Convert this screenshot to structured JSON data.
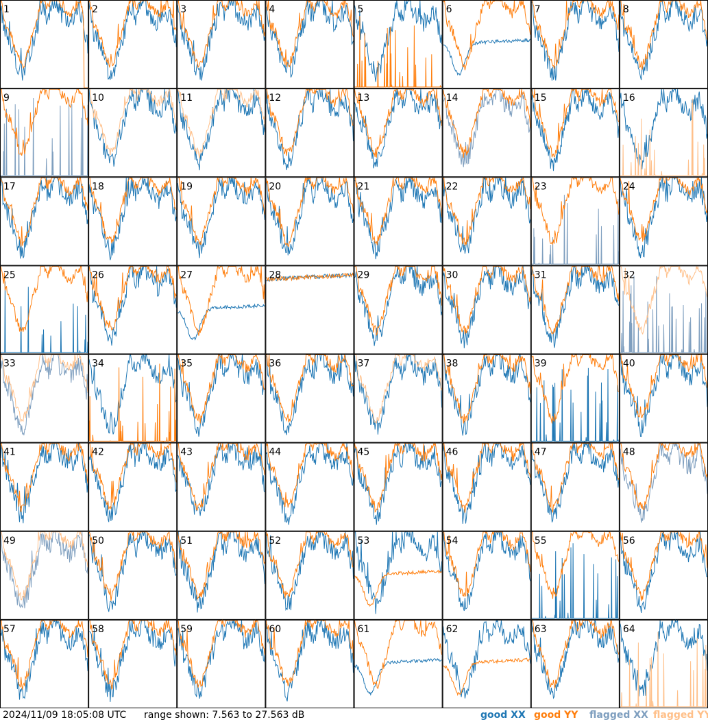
{
  "footer": {
    "timestamp": "2024/11/09 18:05:08 UTC",
    "range": "range shown: 7.563 to 27.563 dB"
  },
  "legend": [
    {
      "label": "good XX",
      "color": "#1f77b4"
    },
    {
      "label": "good YY",
      "color": "#ff7f0e"
    },
    {
      "label": "flagged XX",
      "color": "#7f9fbf"
    },
    {
      "label": "flagged YY",
      "color": "#ffc08a"
    }
  ],
  "chart_data": {
    "type": "line",
    "layout": "grid of 64 small multiples, 8 columns x 8 rows",
    "x": "frequency channel (unlabeled)",
    "ylim": [
      7.563,
      27.563
    ],
    "yunit": "dB",
    "panels": [
      {
        "id": "1",
        "xx": "good",
        "yy": "good",
        "style": "yy_dropout_end"
      },
      {
        "id": "2",
        "xx": "good",
        "yy": "good"
      },
      {
        "id": "3",
        "xx": "good",
        "yy": "good"
      },
      {
        "id": "4",
        "xx": "good",
        "yy": "good"
      },
      {
        "id": "5",
        "xx": "good",
        "yy": "good",
        "style": "yy_spikes"
      },
      {
        "id": "6",
        "xx": "good",
        "yy": "good",
        "style": "smooth_xx"
      },
      {
        "id": "7",
        "xx": "good",
        "yy": "good"
      },
      {
        "id": "8",
        "xx": "good",
        "yy": "good"
      },
      {
        "id": "9",
        "xx": "flagged",
        "yy": "good",
        "style": "xx_spikes"
      },
      {
        "id": "10",
        "xx": "good",
        "yy": "flagged"
      },
      {
        "id": "11",
        "xx": "good",
        "yy": "flagged"
      },
      {
        "id": "12",
        "xx": "good",
        "yy": "good"
      },
      {
        "id": "13",
        "xx": "good",
        "yy": "good"
      },
      {
        "id": "14",
        "xx": "flagged",
        "yy": "good"
      },
      {
        "id": "15",
        "xx": "good",
        "yy": "good"
      },
      {
        "id": "16",
        "xx": "good",
        "yy": "flagged",
        "style": "yy_spikes"
      },
      {
        "id": "17",
        "xx": "good",
        "yy": "good"
      },
      {
        "id": "18",
        "xx": "good",
        "yy": "good"
      },
      {
        "id": "19",
        "xx": "good",
        "yy": "good"
      },
      {
        "id": "20",
        "xx": "good",
        "yy": "good"
      },
      {
        "id": "21",
        "xx": "good",
        "yy": "good"
      },
      {
        "id": "22",
        "xx": "good",
        "yy": "good"
      },
      {
        "id": "23",
        "xx": "flagged",
        "yy": "good",
        "style": "xx_spikes"
      },
      {
        "id": "24",
        "xx": "good",
        "yy": "good"
      },
      {
        "id": "25",
        "xx": "good",
        "yy": "good",
        "style": "xx_spikes"
      },
      {
        "id": "26",
        "xx": "good",
        "yy": "good"
      },
      {
        "id": "27",
        "xx": "good",
        "yy": "good",
        "style": "smooth_xx"
      },
      {
        "id": "28",
        "xx": "good",
        "yy": "good",
        "style": "flat"
      },
      {
        "id": "29",
        "xx": "good",
        "yy": "good"
      },
      {
        "id": "30",
        "xx": "good",
        "yy": "good"
      },
      {
        "id": "31",
        "xx": "good",
        "yy": "good"
      },
      {
        "id": "32",
        "xx": "flagged",
        "yy": "flagged",
        "style": "xx_spikes"
      },
      {
        "id": "33",
        "xx": "flagged",
        "yy": "flagged"
      },
      {
        "id": "34",
        "xx": "good",
        "yy": "good",
        "style": "yy_spikes"
      },
      {
        "id": "35",
        "xx": "good",
        "yy": "good"
      },
      {
        "id": "36",
        "xx": "good",
        "yy": "good"
      },
      {
        "id": "37",
        "xx": "good",
        "yy": "flagged"
      },
      {
        "id": "38",
        "xx": "good",
        "yy": "good"
      },
      {
        "id": "39",
        "xx": "good",
        "yy": "good",
        "style": "xx_spikes"
      },
      {
        "id": "40",
        "xx": "good",
        "yy": "good"
      },
      {
        "id": "41",
        "xx": "good",
        "yy": "good"
      },
      {
        "id": "42",
        "xx": "good",
        "yy": "good"
      },
      {
        "id": "43",
        "xx": "good",
        "yy": "good"
      },
      {
        "id": "44",
        "xx": "good",
        "yy": "good"
      },
      {
        "id": "45",
        "xx": "good",
        "yy": "good"
      },
      {
        "id": "46",
        "xx": "good",
        "yy": "good"
      },
      {
        "id": "47",
        "xx": "good",
        "yy": "good"
      },
      {
        "id": "48",
        "xx": "flagged",
        "yy": "good"
      },
      {
        "id": "49",
        "xx": "flagged",
        "yy": "flagged"
      },
      {
        "id": "50",
        "xx": "good",
        "yy": "good"
      },
      {
        "id": "51",
        "xx": "good",
        "yy": "good"
      },
      {
        "id": "52",
        "xx": "good",
        "yy": "good"
      },
      {
        "id": "53",
        "xx": "good",
        "yy": "good",
        "style": "smooth_yy"
      },
      {
        "id": "54",
        "xx": "good",
        "yy": "good"
      },
      {
        "id": "55",
        "xx": "good",
        "yy": "good",
        "style": "xx_spikes"
      },
      {
        "id": "56",
        "xx": "good",
        "yy": "good"
      },
      {
        "id": "57",
        "xx": "good",
        "yy": "good"
      },
      {
        "id": "58",
        "xx": "good",
        "yy": "good"
      },
      {
        "id": "59",
        "xx": "good",
        "yy": "good"
      },
      {
        "id": "60",
        "xx": "good",
        "yy": "good"
      },
      {
        "id": "61",
        "xx": "good",
        "yy": "good",
        "style": "smooth_xx"
      },
      {
        "id": "62",
        "xx": "good",
        "yy": "good",
        "style": "smooth_yy"
      },
      {
        "id": "63",
        "xx": "good",
        "yy": "good"
      },
      {
        "id": "64",
        "xx": "good",
        "yy": "flagged",
        "style": "yy_spikes"
      }
    ]
  }
}
